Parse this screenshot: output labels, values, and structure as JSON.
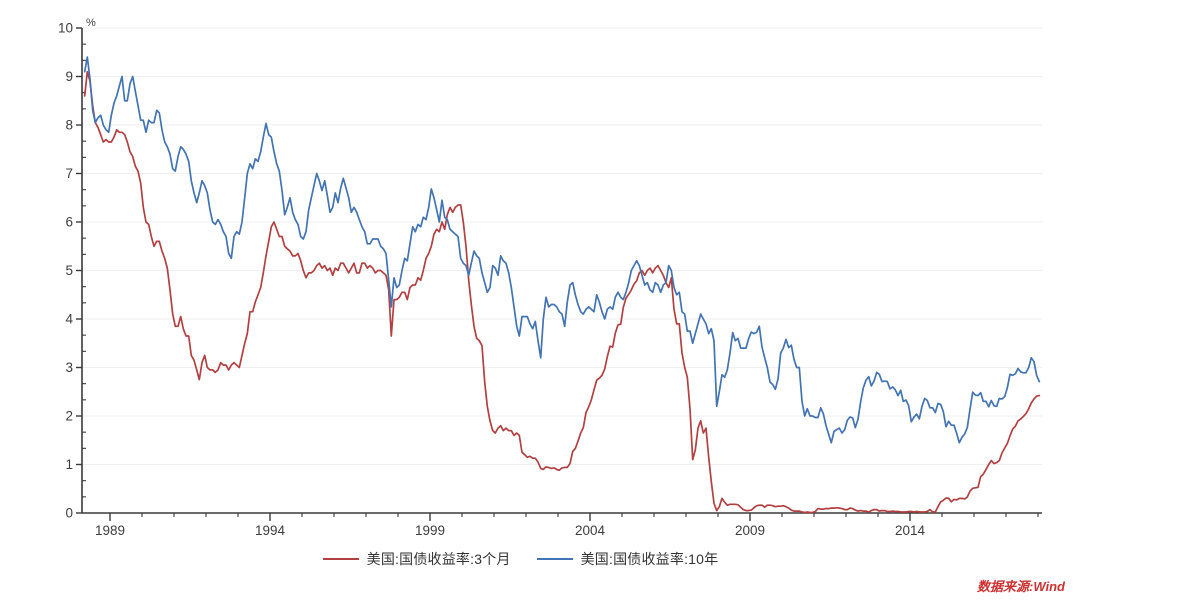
{
  "chart_data": {
    "type": "line",
    "title": "",
    "xlabel": "",
    "ylabel": "",
    "y_unit_label": "%",
    "ylim": [
      0,
      10
    ],
    "y_major_ticks": [
      0,
      1,
      2,
      3,
      4,
      5,
      6,
      7,
      8,
      9,
      10
    ],
    "y_minor_divisions_per_unit": 3,
    "grid": "horizontal-only",
    "x_axis": {
      "tick_labels": [
        "1989",
        "1994",
        "1999",
        "2004",
        "2009",
        "2014"
      ],
      "tick_boundary_years": [
        1990,
        1995,
        2000,
        2005,
        2010,
        2015
      ],
      "minor_tick_step_years": 1,
      "range_years": [
        1989.2,
        2019.1
      ]
    },
    "legend_position": "bottom-center",
    "series": [
      {
        "name": "美国:国债收益率:3个月",
        "color": "#b24041",
        "freq": "monthly",
        "start_year": 1989,
        "start_month": 3,
        "values": [
          8.6,
          9.1,
          8.9,
          8.4,
          8.05,
          7.95,
          7.8,
          7.65,
          7.7,
          7.65,
          7.65,
          7.75,
          7.9,
          7.85,
          7.85,
          7.8,
          7.65,
          7.45,
          7.35,
          7.15,
          7.05,
          6.8,
          6.3,
          6.0,
          5.95,
          5.7,
          5.5,
          5.6,
          5.6,
          5.4,
          5.25,
          5.05,
          4.6,
          4.1,
          3.85,
          3.85,
          4.05,
          3.8,
          3.65,
          3.65,
          3.25,
          3.15,
          2.95,
          2.75,
          3.1,
          3.25,
          3.0,
          2.95,
          2.95,
          2.9,
          2.95,
          3.1,
          3.05,
          3.05,
          2.95,
          3.05,
          3.1,
          3.05,
          3.0,
          3.25,
          3.5,
          3.7,
          4.15,
          4.15,
          4.35,
          4.5,
          4.65,
          4.95,
          5.3,
          5.6,
          5.9,
          6.0,
          5.85,
          5.7,
          5.7,
          5.5,
          5.45,
          5.4,
          5.3,
          5.3,
          5.35,
          5.2,
          5.0,
          4.85,
          4.95,
          4.95,
          5.0,
          5.1,
          5.15,
          5.05,
          5.1,
          5.0,
          5.05,
          4.9,
          5.05,
          5.0,
          5.15,
          5.15,
          5.05,
          4.95,
          5.05,
          5.15,
          4.95,
          4.95,
          5.15,
          5.15,
          5.05,
          5.1,
          5.05,
          4.95,
          5.0,
          5.0,
          4.95,
          4.9,
          4.6,
          3.65,
          4.4,
          4.4,
          4.45,
          4.55,
          4.55,
          4.4,
          4.65,
          4.7,
          4.7,
          4.85,
          4.8,
          5.0,
          5.25,
          5.35,
          5.5,
          5.75,
          5.85,
          5.8,
          6.0,
          5.85,
          6.15,
          6.3,
          6.2,
          6.3,
          6.35,
          6.35,
          6.0,
          5.5,
          4.8,
          4.3,
          3.85,
          3.6,
          3.55,
          3.45,
          2.7,
          2.2,
          1.9,
          1.7,
          1.65,
          1.75,
          1.8,
          1.7,
          1.75,
          1.7,
          1.7,
          1.6,
          1.65,
          1.6,
          1.25,
          1.2,
          1.15,
          1.17,
          1.13,
          1.13,
          1.05,
          0.92,
          0.9,
          0.95,
          0.94,
          0.92,
          0.93,
          0.9,
          0.88,
          0.93,
          0.94,
          0.94,
          1.02,
          1.27,
          1.33,
          1.48,
          1.65,
          1.76,
          2.07,
          2.19,
          2.33,
          2.54,
          2.74,
          2.78,
          2.84,
          2.97,
          3.22,
          3.44,
          3.42,
          3.71,
          3.88,
          3.89,
          4.24,
          4.43,
          4.51,
          4.6,
          4.72,
          4.79,
          4.95,
          5.0,
          4.9,
          5.0,
          5.05,
          4.95,
          5.05,
          5.1,
          5.0,
          4.9,
          4.75,
          4.65,
          4.85,
          4.2,
          3.9,
          3.9,
          3.3,
          3.0,
          2.8,
          2.15,
          1.1,
          1.3,
          1.75,
          1.9,
          1.65,
          1.75,
          1.15,
          0.65,
          0.2,
          0.05,
          0.13,
          0.3,
          0.22,
          0.16,
          0.18,
          0.18,
          0.18,
          0.17,
          0.12,
          0.07,
          0.05,
          0.05,
          0.06,
          0.11,
          0.15,
          0.16,
          0.16,
          0.12,
          0.16,
          0.16,
          0.15,
          0.13,
          0.14,
          0.14,
          0.15,
          0.13,
          0.1,
          0.06,
          0.04,
          0.04,
          0.04,
          0.02,
          0.01,
          0.02,
          0.01,
          0.01,
          0.03,
          0.09,
          0.08,
          0.08,
          0.09,
          0.09,
          0.1,
          0.1,
          0.11,
          0.1,
          0.09,
          0.07,
          0.07,
          0.1,
          0.09,
          0.06,
          0.04,
          0.05,
          0.04,
          0.04,
          0.02,
          0.05,
          0.07,
          0.07,
          0.04,
          0.05,
          0.05,
          0.03,
          0.03,
          0.04,
          0.03,
          0.03,
          0.02,
          0.02,
          0.02,
          0.03,
          0.03,
          0.02,
          0.03,
          0.02,
          0.02,
          0.02,
          0.03,
          0.07,
          0.02,
          0.02,
          0.13,
          0.23,
          0.26,
          0.31,
          0.3,
          0.23,
          0.28,
          0.27,
          0.3,
          0.3,
          0.29,
          0.33,
          0.45,
          0.51,
          0.52,
          0.53,
          0.75,
          0.8,
          0.9,
          1.0,
          1.08,
          1.02,
          1.04,
          1.08,
          1.24,
          1.34,
          1.43,
          1.59,
          1.73,
          1.79,
          1.9,
          1.94,
          1.99,
          2.05,
          2.15,
          2.27,
          2.35,
          2.41,
          2.42
        ]
      },
      {
        "name": "美国:国债收益率:10年",
        "color": "#4273b2",
        "freq": "monthly",
        "start_year": 1989,
        "start_month": 3,
        "values": [
          9.1,
          9.4,
          8.95,
          8.3,
          8.05,
          8.15,
          8.2,
          8.0,
          7.9,
          7.85,
          8.2,
          8.45,
          8.6,
          8.8,
          9.0,
          8.5,
          8.5,
          8.85,
          9.0,
          8.7,
          8.4,
          8.1,
          8.1,
          7.85,
          8.1,
          8.05,
          8.05,
          8.3,
          8.25,
          7.9,
          7.65,
          7.55,
          7.4,
          7.1,
          7.05,
          7.35,
          7.55,
          7.5,
          7.4,
          7.25,
          6.85,
          6.6,
          6.4,
          6.6,
          6.85,
          6.75,
          6.6,
          6.25,
          6.0,
          5.95,
          6.05,
          5.95,
          5.8,
          5.7,
          5.35,
          5.25,
          5.7,
          5.8,
          5.75,
          6.0,
          6.5,
          7.0,
          7.2,
          7.1,
          7.3,
          7.25,
          7.45,
          7.75,
          8.03,
          7.8,
          7.75,
          7.45,
          7.2,
          7.05,
          6.65,
          6.15,
          6.3,
          6.5,
          6.2,
          6.05,
          5.95,
          5.7,
          5.65,
          5.8,
          6.25,
          6.5,
          6.75,
          7.0,
          6.85,
          6.65,
          6.85,
          6.55,
          6.2,
          6.3,
          6.6,
          6.4,
          6.7,
          6.9,
          6.7,
          6.5,
          6.2,
          6.3,
          6.2,
          6.05,
          5.9,
          5.8,
          5.55,
          5.55,
          5.65,
          5.65,
          5.65,
          5.5,
          5.45,
          5.35,
          4.8,
          4.25,
          4.85,
          4.65,
          4.7,
          5.0,
          5.25,
          5.2,
          5.55,
          5.9,
          5.8,
          5.95,
          5.9,
          6.1,
          6.05,
          6.3,
          6.68,
          6.5,
          6.25,
          6.0,
          6.45,
          6.1,
          6.05,
          5.85,
          5.8,
          5.75,
          5.7,
          5.25,
          5.15,
          5.1,
          4.9,
          5.15,
          5.4,
          5.3,
          5.25,
          4.95,
          4.75,
          4.55,
          4.65,
          5.1,
          5.05,
          4.9,
          5.3,
          5.2,
          5.15,
          4.95,
          4.65,
          4.25,
          3.85,
          3.65,
          4.05,
          4.05,
          4.05,
          3.9,
          3.8,
          3.95,
          3.55,
          3.2,
          4.0,
          4.45,
          4.25,
          4.3,
          4.3,
          4.25,
          4.15,
          4.1,
          3.85,
          4.35,
          4.7,
          4.75,
          4.5,
          4.3,
          4.15,
          4.1,
          4.2,
          4.25,
          4.2,
          4.15,
          4.5,
          4.35,
          4.15,
          4.0,
          4.2,
          4.25,
          4.2,
          4.45,
          4.55,
          4.45,
          4.4,
          4.55,
          4.75,
          5.0,
          5.1,
          5.2,
          5.1,
          4.9,
          4.7,
          4.75,
          4.6,
          4.55,
          4.75,
          4.7,
          4.55,
          4.7,
          4.75,
          5.1,
          5.0,
          4.65,
          4.5,
          4.55,
          4.15,
          4.1,
          3.75,
          3.75,
          3.5,
          3.7,
          3.9,
          4.1,
          4.0,
          3.9,
          3.7,
          3.8,
          3.55,
          2.2,
          2.5,
          2.85,
          2.8,
          2.95,
          3.3,
          3.72,
          3.55,
          3.6,
          3.4,
          3.4,
          3.4,
          3.6,
          3.73,
          3.7,
          3.73,
          3.85,
          3.42,
          3.2,
          3.0,
          2.7,
          2.65,
          2.55,
          2.76,
          3.3,
          3.4,
          3.58,
          3.41,
          3.46,
          3.17,
          3.0,
          3.0,
          2.3,
          2.0,
          2.15,
          2.0,
          2.0,
          1.97,
          1.97,
          2.17,
          2.05,
          1.8,
          1.62,
          1.45,
          1.68,
          1.72,
          1.75,
          1.65,
          1.72,
          1.91,
          1.98,
          1.96,
          1.76,
          1.93,
          2.3,
          2.58,
          2.74,
          2.81,
          2.62,
          2.72,
          2.9,
          2.86,
          2.71,
          2.72,
          2.71,
          2.56,
          2.6,
          2.54,
          2.42,
          2.53,
          2.3,
          2.33,
          2.21,
          1.88,
          1.98,
          2.04,
          1.94,
          2.2,
          2.36,
          2.32,
          2.17,
          2.17,
          2.07,
          2.26,
          2.24,
          2.09,
          1.78,
          1.89,
          1.81,
          1.81,
          1.64,
          1.45,
          1.56,
          1.63,
          1.76,
          2.14,
          2.49,
          2.43,
          2.42,
          2.48,
          2.3,
          2.3,
          2.19,
          2.32,
          2.21,
          2.2,
          2.36,
          2.35,
          2.4,
          2.58,
          2.86,
          2.84,
          2.87,
          2.98,
          2.91,
          2.89,
          2.89,
          3.0,
          3.2,
          3.12,
          2.83,
          2.71
        ]
      }
    ]
  },
  "legend": {
    "items": [
      {
        "label": "美国:国债收益率:3个月",
        "color": "#b24041"
      },
      {
        "label": "美国:国债收益率:10年",
        "color": "#4273b2"
      }
    ]
  },
  "source": {
    "text": "数据来源:Wind"
  },
  "colors": {
    "background": "#ffffff",
    "axis": "#3a3a3a",
    "tick_label": "#3d3d3d",
    "gridline": "#efefef",
    "series_3m": "#b24041",
    "series_10y": "#4273b2",
    "source_note": "#cc3232",
    "legend_text": "#333333"
  }
}
